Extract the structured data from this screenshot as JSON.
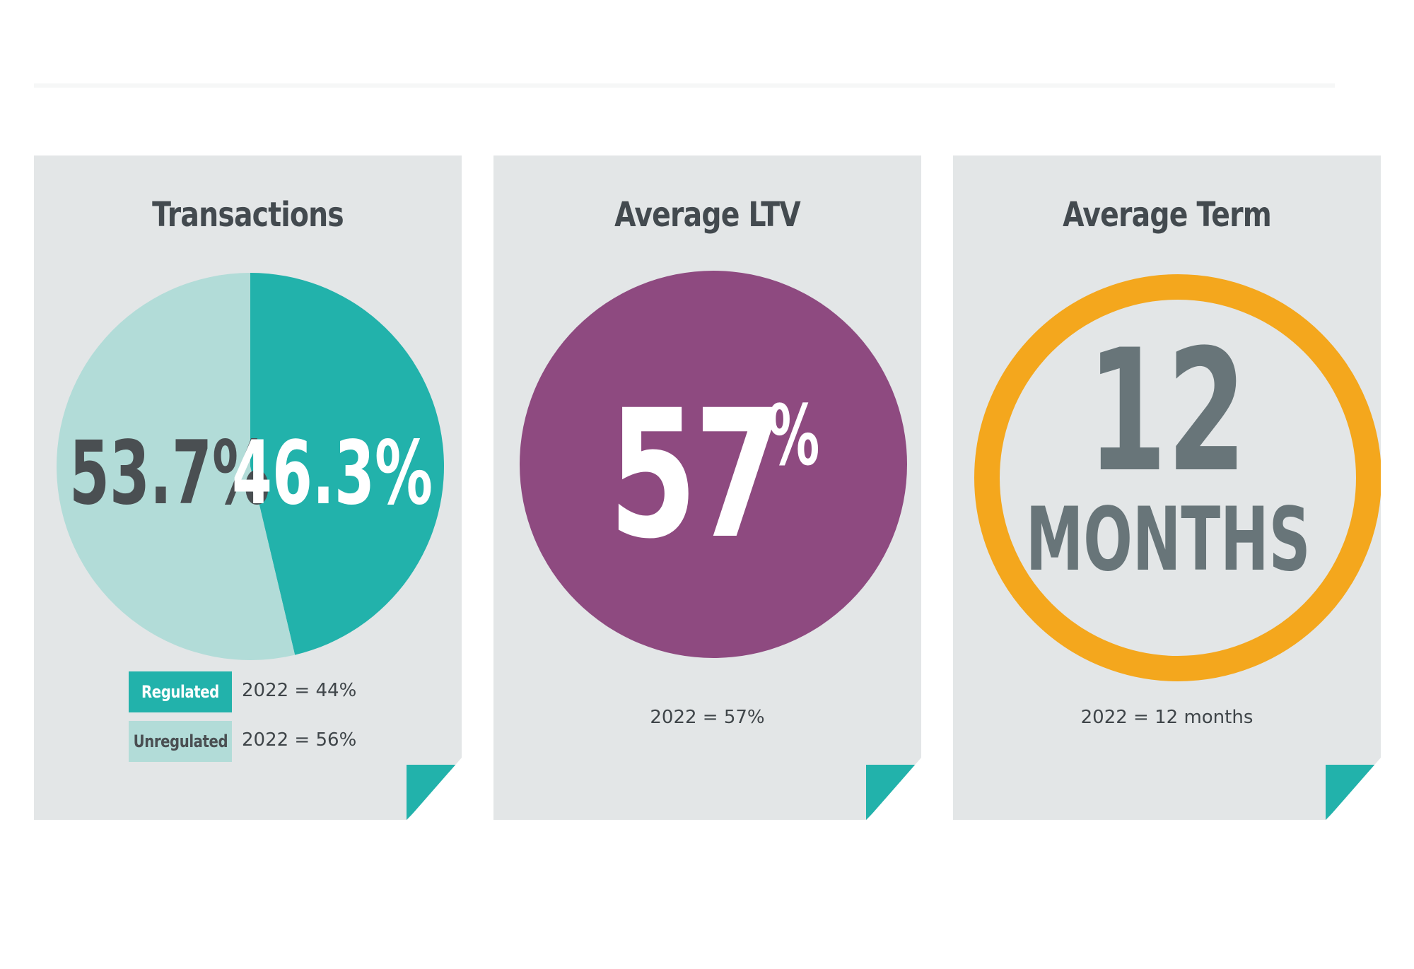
{
  "chart_data": [
    {
      "type": "pie",
      "title": "Transactions",
      "slices": [
        {
          "name": "Regulated",
          "value": 46.3,
          "label": "46.3%",
          "color": "#22b2ab",
          "text_color": "#ffffff"
        },
        {
          "name": "Unregulated",
          "value": 53.7,
          "label": "53.7%",
          "color": "#b2dcd8",
          "text_color": "#4a4f52"
        }
      ],
      "legend": [
        {
          "label": "Regulated",
          "note": "2022 = 44%",
          "swatch": "#22b2ab",
          "text_color": "#ffffff"
        },
        {
          "label": "Unregulated",
          "note": "2022 = 56%",
          "swatch": "#b2dcd8",
          "text_color": "#4a4f52"
        }
      ]
    },
    {
      "type": "table",
      "title": "Average LTV",
      "value": "57",
      "unit": "%",
      "color": "#8e4a80",
      "footnote": "2022 = 57%"
    },
    {
      "type": "table",
      "title": "Average Term",
      "value": "12",
      "unit": "MONTHS",
      "color": "#f4a71d",
      "footnote": "2022 = 12 months"
    }
  ],
  "colors": {
    "card": "#e3e6e7",
    "corner_fold": "#22b2ab",
    "title_text": "#434a4f",
    "term_text": "#687579"
  }
}
